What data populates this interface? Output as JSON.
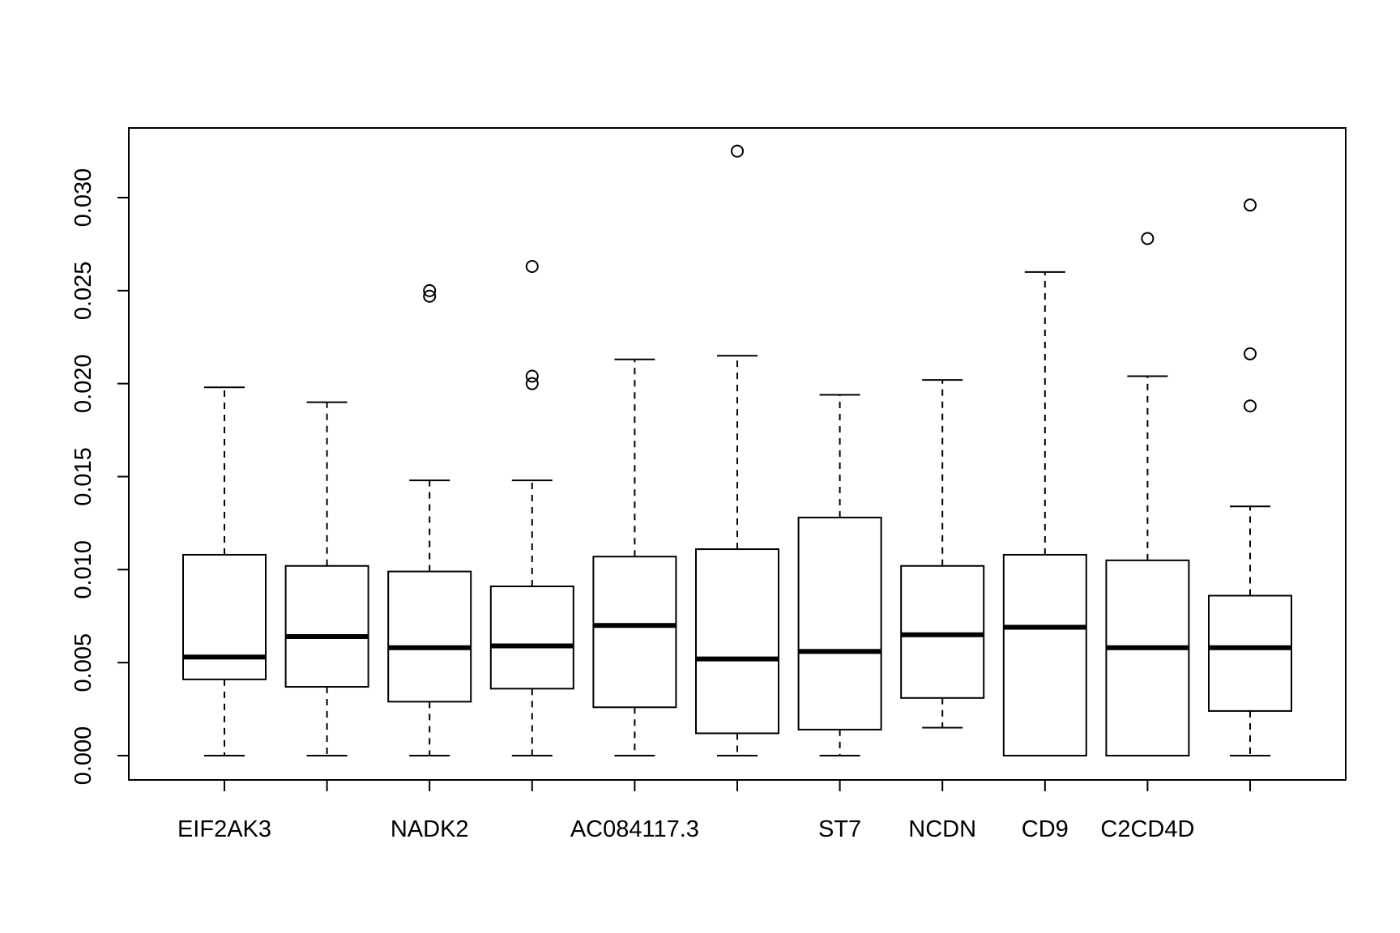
{
  "chart_data": {
    "type": "boxplot",
    "title": "",
    "xlabel": "",
    "ylabel": "",
    "ylim": [
      -0.0013,
      0.0337
    ],
    "yticks": [
      "0.000",
      "0.005",
      "0.010",
      "0.015",
      "0.020",
      "0.025",
      "0.030"
    ],
    "ytick_values": [
      0,
      0.005,
      0.01,
      0.015,
      0.02,
      0.025,
      0.03
    ],
    "categories": [
      "EIF2AK3",
      "",
      "NADK2",
      "",
      "AC084117.3",
      "",
      "ST7",
      "NCDN",
      "CD9",
      "C2CD4D",
      ""
    ],
    "boxes": [
      {
        "min": 0.0,
        "q1": 0.0041,
        "median": 0.0053,
        "q3": 0.0108,
        "max": 0.0198,
        "outliers": []
      },
      {
        "min": 0.0,
        "q1": 0.0037,
        "median": 0.0064,
        "q3": 0.0102,
        "max": 0.019,
        "outliers": []
      },
      {
        "min": 0.0,
        "q1": 0.0029,
        "median": 0.0058,
        "q3": 0.0099,
        "max": 0.0148,
        "outliers": [
          0.025,
          0.0247
        ]
      },
      {
        "min": 0.0,
        "q1": 0.0036,
        "median": 0.0059,
        "q3": 0.0091,
        "max": 0.0148,
        "outliers": [
          0.0263,
          0.0204,
          0.02
        ]
      },
      {
        "min": 0.0,
        "q1": 0.0026,
        "median": 0.007,
        "q3": 0.0107,
        "max": 0.0213,
        "outliers": []
      },
      {
        "min": 0.0,
        "q1": 0.0012,
        "median": 0.0052,
        "q3": 0.0111,
        "max": 0.0215,
        "outliers": [
          0.0325
        ]
      },
      {
        "min": 0.0,
        "q1": 0.0014,
        "median": 0.0056,
        "q3": 0.0128,
        "max": 0.0194,
        "outliers": []
      },
      {
        "min": 0.0015,
        "q1": 0.0031,
        "median": 0.0065,
        "q3": 0.0102,
        "max": 0.0202,
        "outliers": []
      },
      {
        "min": 0.0,
        "q1": 0.0,
        "median": 0.0069,
        "q3": 0.0108,
        "max": 0.026,
        "outliers": []
      },
      {
        "min": 0.0,
        "q1": 0.0,
        "median": 0.0058,
        "q3": 0.0105,
        "max": 0.0204,
        "outliers": [
          0.0278
        ]
      },
      {
        "min": 0.0,
        "q1": 0.0024,
        "median": 0.0058,
        "q3": 0.0086,
        "max": 0.0134,
        "outliers": [
          0.0296,
          0.0216,
          0.0188
        ]
      }
    ],
    "grid": false,
    "legend": "none"
  }
}
